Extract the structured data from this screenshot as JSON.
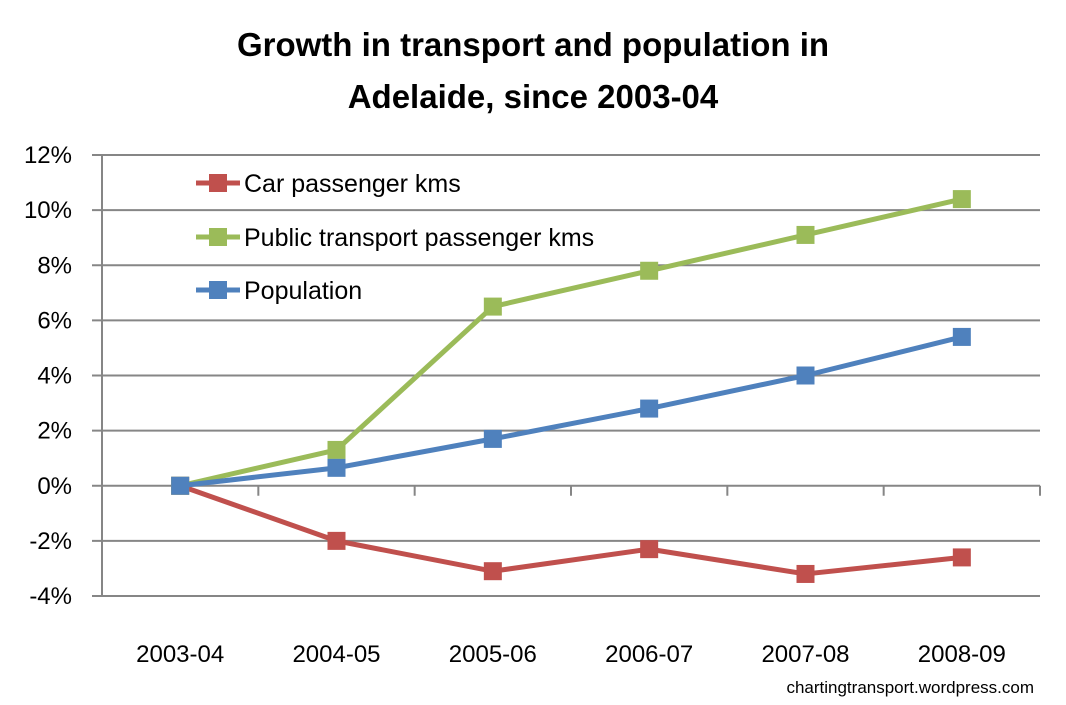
{
  "chart_data": {
    "type": "line",
    "title_lines": [
      "Growth in transport and population in",
      "Adelaide, since 2003-04"
    ],
    "xlabel": "",
    "ylabel": "",
    "categories": [
      "2003-04",
      "2004-05",
      "2005-06",
      "2006-07",
      "2007-08",
      "2008-09"
    ],
    "y_ticks": [
      "12%",
      "10%",
      "8%",
      "6%",
      "4%",
      "2%",
      "0%",
      "-2%",
      "-4%"
    ],
    "ylim": [
      -4,
      12
    ],
    "grid": true,
    "legend_position": "top-left",
    "series": [
      {
        "name": "Car passenger kms",
        "color": "#c0504d",
        "values": [
          0,
          -2.0,
          -3.1,
          -2.3,
          -3.2,
          -2.6
        ]
      },
      {
        "name": "Public transport passenger kms",
        "color": "#9bbb59",
        "values": [
          0,
          1.3,
          6.5,
          7.8,
          9.1,
          10.4
        ]
      },
      {
        "name": "Population",
        "color": "#4f81bd",
        "values": [
          0,
          0.65,
          1.7,
          2.8,
          4.0,
          5.4
        ]
      }
    ],
    "credit": "chartingtransport.wordpress.com"
  }
}
